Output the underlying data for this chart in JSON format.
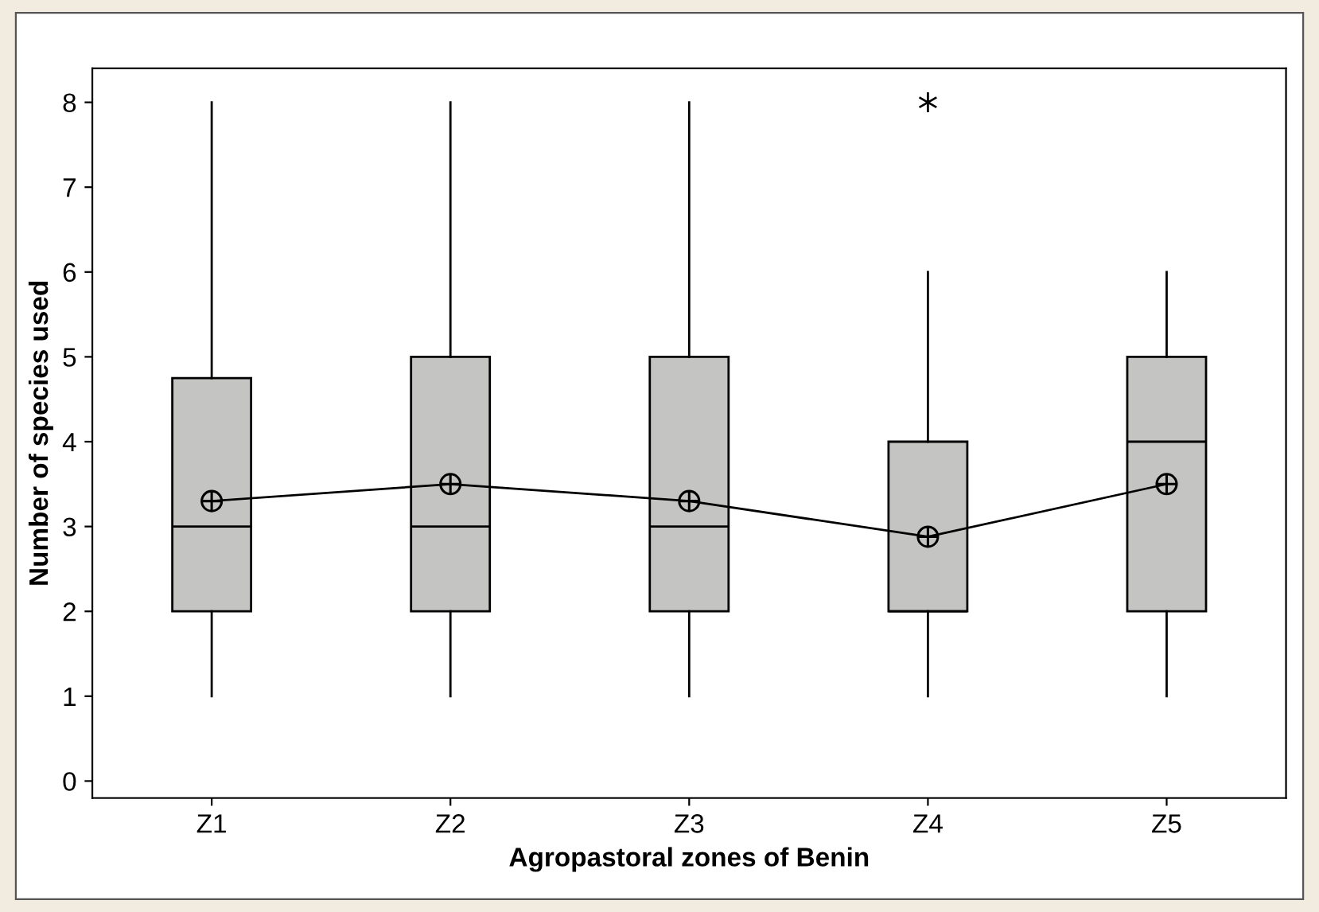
{
  "chart_data": {
    "type": "box",
    "xlabel": "Agropastoral zones of Benin",
    "ylabel": "Number of species used",
    "categories": [
      "Z1",
      "Z2",
      "Z3",
      "Z4",
      "Z5"
    ],
    "boxes": [
      {
        "low": 1,
        "q1": 2,
        "median": 3,
        "q3": 4.75,
        "high": 8,
        "mean": 3.3
      },
      {
        "low": 1,
        "q1": 2,
        "median": 3,
        "q3": 5,
        "high": 8,
        "mean": 3.5
      },
      {
        "low": 1,
        "q1": 2,
        "median": 3,
        "q3": 5,
        "high": 8,
        "mean": 3.3
      },
      {
        "low": 1,
        "q1": 2,
        "median": 2,
        "q3": 4,
        "high": 6,
        "mean": 2.88,
        "outliers": [
          8
        ]
      },
      {
        "low": 1,
        "q1": 2,
        "median": 4,
        "q3": 5,
        "high": 6,
        "mean": 3.5
      }
    ],
    "color": "#c4c5c3",
    "series": [
      {
        "type": "line",
        "color": "#000000",
        "values": [
          3.3,
          3.5,
          3.3,
          2.88,
          3.5
        ]
      }
    ],
    "ylim": [
      -0.2,
      8.4
    ],
    "yticks": [
      0,
      1,
      2,
      3,
      4,
      5,
      6,
      7,
      8
    ],
    "grid": false,
    "legend": false
  }
}
